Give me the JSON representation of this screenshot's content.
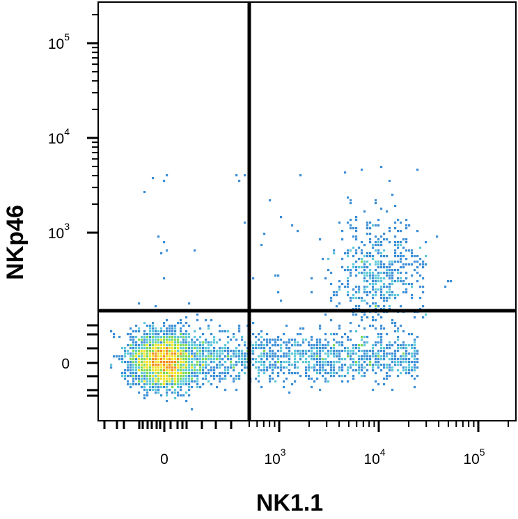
{
  "chart_data": {
    "type": "scatter",
    "subtype": "flow-cytometry-density-plot",
    "title": "",
    "xlabel": "NK1.1",
    "ylabel": "NKp46",
    "x_scale": "biexponential",
    "y_scale": "biexponential",
    "xlim": [
      -300,
      200000
    ],
    "ylim": [
      -300,
      300000
    ],
    "x_ticks": [
      {
        "value": 0,
        "base": "0",
        "exp": ""
      },
      {
        "value": 1000,
        "base": "10",
        "exp": "3"
      },
      {
        "value": 10000,
        "base": "10",
        "exp": "4"
      },
      {
        "value": 100000,
        "base": "10",
        "exp": "5"
      }
    ],
    "y_ticks": [
      {
        "value": 0,
        "base": "0",
        "exp": ""
      },
      {
        "value": 1000,
        "base": "10",
        "exp": "3"
      },
      {
        "value": 10000,
        "base": "10",
        "exp": "4"
      },
      {
        "value": 100000,
        "base": "10",
        "exp": "5"
      }
    ],
    "quadrant_gates": {
      "x": 450,
      "y": 180
    },
    "grid": false,
    "legend": "none",
    "colormap": [
      "#2b4ea8",
      "#3d8fd6",
      "#5ec8d8",
      "#7ed957",
      "#f2e22a",
      "#f28c1f",
      "#e81e1e"
    ],
    "populations": [
      {
        "description": "double-negative cells",
        "x_center": 0,
        "y_center": 0,
        "density": "very high"
      },
      {
        "description": "NK1.1+ NKp46- cells",
        "x_center": 3000,
        "y_center": 0,
        "density": "low"
      },
      {
        "description": "NK1.1+ NKp46+ cells",
        "x_center": 9000,
        "y_center": 500,
        "density": "moderate"
      }
    ]
  }
}
